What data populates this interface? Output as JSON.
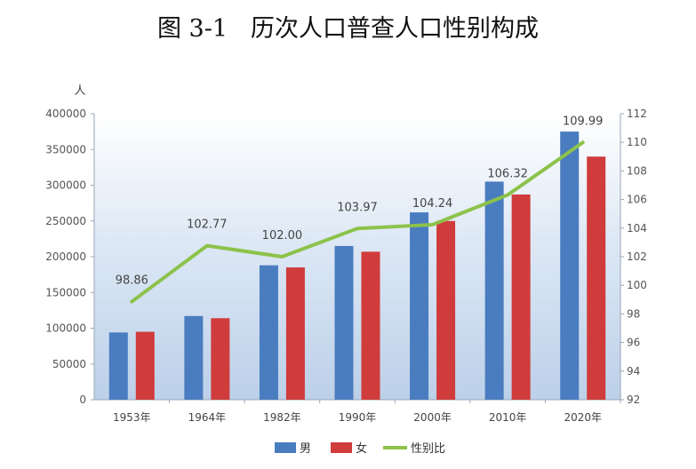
{
  "title": {
    "number": "图 3-1",
    "text": "历次人口普查人口性别构成"
  },
  "chart_data": {
    "type": "bar",
    "categories": [
      "1953年",
      "1964年",
      "1982年",
      "1990年",
      "2000年",
      "2010年",
      "2020年"
    ],
    "y_unit": "人",
    "ylim": [
      0,
      400000
    ],
    "yticks": [
      "0",
      "50000",
      "100000",
      "150000",
      "200000",
      "250000",
      "300000",
      "350000",
      "400000"
    ],
    "y2lim": [
      92,
      112
    ],
    "y2ticks": [
      "92",
      "94",
      "96",
      "98",
      "100",
      "102",
      "104",
      "106",
      "108",
      "110",
      "112"
    ],
    "series": [
      {
        "name": "男",
        "type": "bar",
        "color": "#4a7cc0",
        "axis": "left",
        "values": [
          94000,
          117000,
          188000,
          215000,
          262000,
          305000,
          375000
        ]
      },
      {
        "name": "女",
        "type": "bar",
        "color": "#d03b3b",
        "axis": "left",
        "values": [
          95000,
          114000,
          185000,
          207000,
          250000,
          287000,
          340000
        ]
      },
      {
        "name": "性别比",
        "type": "line",
        "color": "#8cc24a",
        "axis": "right",
        "values": [
          98.86,
          102.77,
          102.0,
          103.97,
          104.24,
          106.32,
          109.99
        ],
        "labels": [
          "98.86",
          "102.77",
          "102.00",
          "103.97",
          "104.24",
          "106.32",
          "109.99"
        ]
      }
    ],
    "legend": [
      "男",
      "女",
      "性别比"
    ],
    "legend_position": "bottom",
    "grid": false,
    "background": "gradient-blue"
  }
}
